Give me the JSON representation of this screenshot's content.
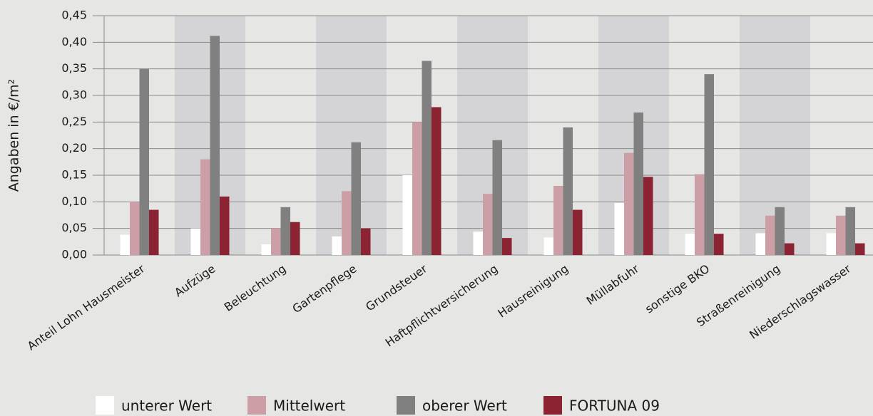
{
  "chart_data": {
    "type": "bar",
    "y_label": "Angaben in €/m²",
    "categories": [
      "Anteil Lohn Hausmeister",
      "Aufzüge",
      "Beleuchtung",
      "Gartenpflege",
      "Grundsteuer",
      "Haftpflichtversicherung",
      "Hausreinigung",
      "Müllabfuhr",
      "sonstige BKO",
      "Straßenreinigung",
      "Niederschlagswasser"
    ],
    "series": [
      {
        "name": "unterer Wert",
        "color": "#ffffff",
        "values": [
          0.038,
          0.05,
          0.02,
          0.035,
          0.15,
          0.044,
          0.033,
          0.098,
          0.04,
          0.041,
          0.041
        ]
      },
      {
        "name": "Mittelwert",
        "color": "#cc9fa6",
        "values": [
          0.1,
          0.18,
          0.05,
          0.12,
          0.25,
          0.115,
          0.13,
          0.192,
          0.152,
          0.074,
          0.074
        ]
      },
      {
        "name": "oberer Wert",
        "color": "#808080",
        "values": [
          0.35,
          0.412,
          0.09,
          0.212,
          0.365,
          0.216,
          0.24,
          0.268,
          0.34,
          0.09,
          0.09
        ]
      },
      {
        "name": "FORTUNA 09",
        "color": "#8b2333",
        "values": [
          0.085,
          0.11,
          0.062,
          0.05,
          0.278,
          0.032,
          0.085,
          0.147,
          0.04,
          0.022,
          0.022
        ]
      }
    ],
    "ylim": [
      0,
      0.45
    ],
    "yticks": [
      {
        "value": 0,
        "label": "0,00"
      },
      {
        "value": 0.05,
        "label": "0,05"
      },
      {
        "value": 0.1,
        "label": "0,10"
      },
      {
        "value": 0.15,
        "label": "0,15"
      },
      {
        "value": 0.2,
        "label": "0,20"
      },
      {
        "value": 0.25,
        "label": "0,25"
      },
      {
        "value": 0.3,
        "label": "0,30"
      },
      {
        "value": 0.35,
        "label": "0,35"
      },
      {
        "value": 0.4,
        "label": "0,40"
      },
      {
        "value": 0.45,
        "label": "0,45"
      }
    ],
    "grid": true,
    "legend": "bottom"
  }
}
